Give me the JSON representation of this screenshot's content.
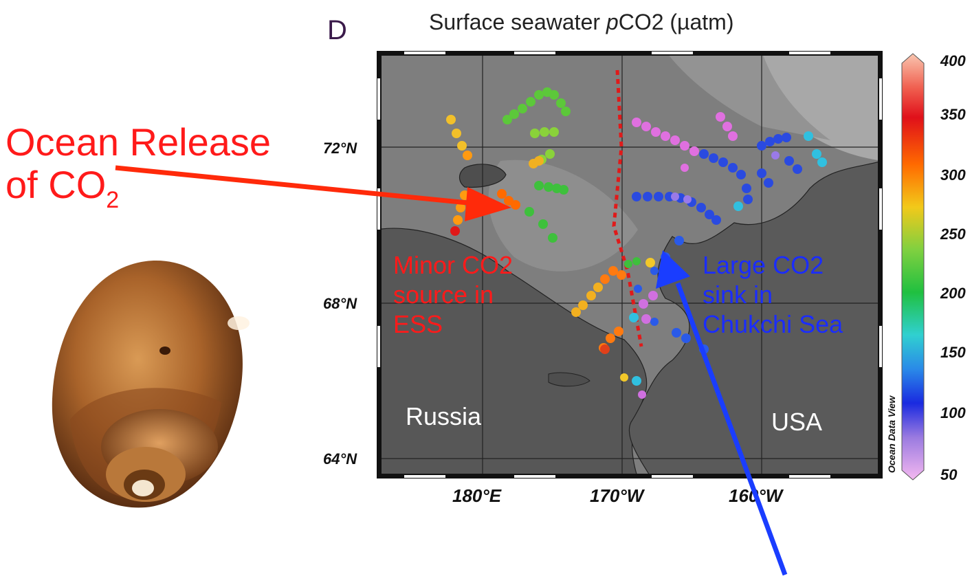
{
  "callout": {
    "line1": "Ocean Release",
    "line2_prefix": "of CO",
    "line2_sub": "2"
  },
  "panel_letter": "D",
  "map_title_pre": "Surface seawater ",
  "map_title_italic": "p",
  "map_title_post": "CO2 (µatm)",
  "lat_labels": [
    "72°N",
    "68°N",
    "64°N"
  ],
  "lon_labels": [
    "180°E",
    "170°W",
    "160°W"
  ],
  "colorbar": {
    "ticks": [
      "400",
      "350",
      "300",
      "250",
      "200",
      "150",
      "100",
      "50"
    ],
    "watermark": "Ocean Data View",
    "colors": [
      "#f7b9a8",
      "#e0101a",
      "#ff7a00",
      "#f2c91a",
      "#36c040",
      "#30c0e0",
      "#1a3de0",
      "#e070e0"
    ]
  },
  "map_labels": {
    "minor": [
      "Minor CO2",
      "source in",
      "ESS"
    ],
    "large": [
      "Large CO2",
      "sink in",
      "Chukchi Sea"
    ],
    "russia": "Russia",
    "usa": "USA"
  },
  "colors": {
    "red_arrow": "#ff2a0a",
    "blue_arrow": "#1a3dff",
    "divider": "#e01a1a",
    "ocean": "#7a7a7a",
    "land": "#555555"
  }
}
